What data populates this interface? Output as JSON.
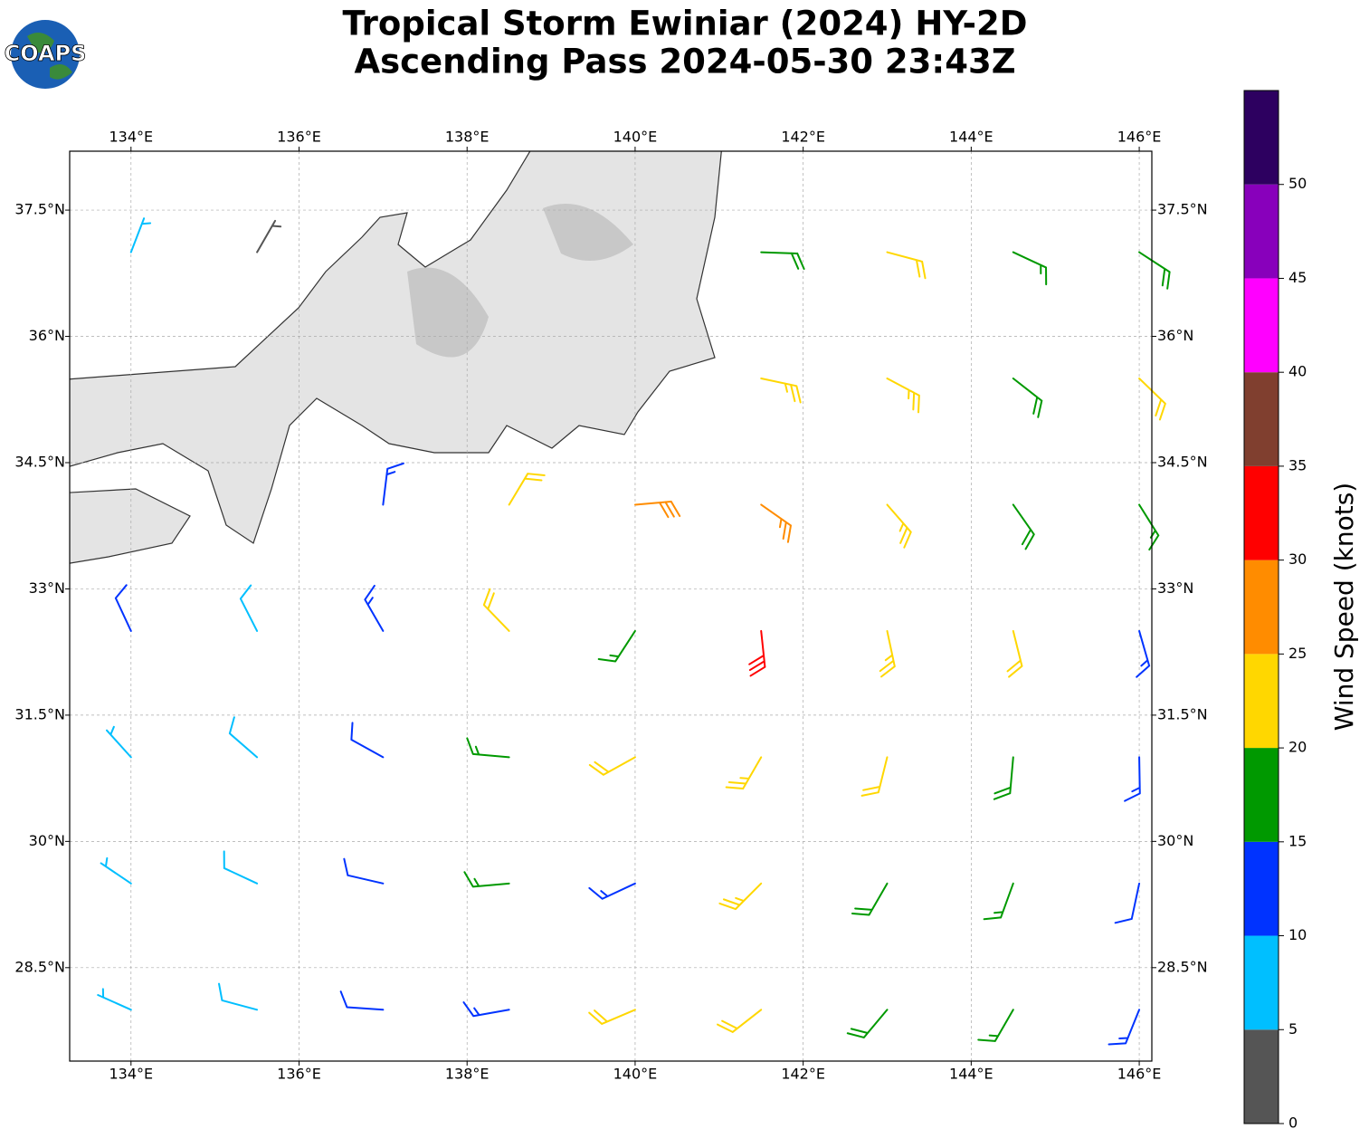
{
  "map": {
    "title": [
      "Tropical Storm Ewiniar (2024) HY-2D",
      "Ascending Pass 2024-05-30 23:43Z"
    ],
    "logo": "COAPS",
    "xlim": [
      133.27,
      146.15
    ],
    "ylim": [
      27.39,
      38.2
    ],
    "xticks": [
      {
        "value": 134,
        "label": "134°E"
      },
      {
        "value": 136,
        "label": "136°E"
      },
      {
        "value": 138,
        "label": "138°E"
      },
      {
        "value": 140,
        "label": "140°E"
      },
      {
        "value": 142,
        "label": "142°E"
      },
      {
        "value": 144,
        "label": "144°E"
      },
      {
        "value": 146,
        "label": "146°E"
      }
    ],
    "yticks": [
      {
        "value": 28.5,
        "label": "28.5°N"
      },
      {
        "value": 30,
        "label": "30°N"
      },
      {
        "value": 31.5,
        "label": "31.5°N"
      },
      {
        "value": 33,
        "label": "33°N"
      },
      {
        "value": 34.5,
        "label": "34.5°N"
      },
      {
        "value": 36,
        "label": "36°N"
      },
      {
        "value": 37.5,
        "label": "37.5°N"
      }
    ],
    "grid": true,
    "colorbar": {
      "label": "Wind Speed (knots)",
      "bounds": [
        0,
        5,
        10,
        15,
        20,
        25,
        30,
        35,
        40,
        45,
        50,
        55
      ],
      "colors": [
        "#555555",
        "#00bfff",
        "#0033ff",
        "#009900",
        "#ffd700",
        "#ff8c00",
        "#ff0000",
        "#803f2f",
        "#ff00ff",
        "#8800bb",
        "#2d0060"
      ],
      "ticks": [
        0,
        5,
        10,
        15,
        20,
        25,
        30,
        35,
        40,
        45,
        50
      ]
    },
    "barbs": {
      "lon": [
        134,
        135.5,
        137,
        138.5,
        140,
        141.5,
        143,
        144.5,
        146,
        134,
        135.5,
        137,
        138.5,
        140,
        141.5,
        143,
        144.5,
        146,
        134,
        135.5,
        137,
        138.5,
        140,
        141.5,
        143,
        144.5,
        146,
        134,
        135.5,
        137,
        138.5,
        140,
        141.5,
        143,
        144.5,
        146,
        137,
        138.5,
        140,
        141.5,
        143,
        144.5,
        146,
        141.5,
        143,
        144.5,
        146,
        134,
        135.5,
        141.5,
        143,
        144.5,
        146
      ],
      "lat": [
        28,
        28,
        28,
        28,
        28,
        28,
        28,
        28,
        28,
        29.5,
        29.5,
        29.5,
        29.5,
        29.5,
        29.5,
        29.5,
        29.5,
        29.5,
        31,
        31,
        31,
        31,
        31,
        31,
        31,
        31,
        31,
        32.5,
        32.5,
        32.5,
        32.5,
        32.5,
        32.5,
        32.5,
        32.5,
        32.5,
        34,
        34,
        34,
        34,
        34,
        34,
        34,
        35.5,
        35.5,
        35.5,
        35.5,
        37,
        37,
        37,
        37,
        37,
        37
      ],
      "speed": [
        7,
        9,
        12,
        14,
        22,
        22,
        18,
        17,
        13,
        7,
        9,
        12,
        17,
        13,
        23,
        18,
        17,
        12,
        6,
        8,
        12,
        17,
        22,
        24,
        22,
        18,
        14,
        11,
        9,
        13,
        22,
        16,
        32,
        24,
        21,
        13,
        13,
        22,
        28,
        27,
        24,
        19,
        17,
        24,
        24,
        18,
        22,
        7,
        4,
        18,
        22,
        17,
        19
      ],
      "direction": [
        294,
        285,
        274,
        260,
        247,
        232,
        220,
        210,
        202,
        304,
        295,
        283,
        265,
        245,
        225,
        210,
        200,
        192,
        318,
        311,
        299,
        275,
        241,
        210,
        194,
        185,
        179,
        335,
        333,
        330,
        316,
        213,
        174,
        168,
        166,
        164,
        7,
        31,
        85,
        125,
        139,
        145,
        148,
        102,
        118,
        128,
        134,
        21,
        30,
        92,
        105,
        115,
        123
      ]
    }
  }
}
